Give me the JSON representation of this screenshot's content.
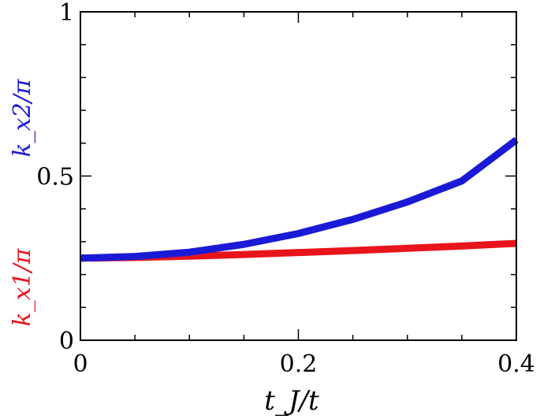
{
  "chart_data": {
    "type": "line",
    "xlabel": "t_J/t",
    "ylabel_parts": [
      {
        "text": "k_x1/π",
        "color": "#e8141c"
      },
      {
        "text": "k_x2/π",
        "color": "#1a1ad6"
      }
    ],
    "xlim": [
      0,
      0.4
    ],
    "ylim": [
      0,
      1
    ],
    "x_ticks": [
      0,
      0.2,
      0.4
    ],
    "x_tick_labels": [
      "0",
      "0.2",
      "0.4"
    ],
    "y_ticks": [
      0,
      0.5,
      1
    ],
    "y_tick_labels": [
      "0",
      "0.5",
      "1"
    ],
    "x_minor_step": 0.05,
    "y_minor_step": 0.1,
    "grid": false,
    "series": [
      {
        "name": "k_x1/π",
        "color": "#e8141c",
        "x": [
          0,
          0.05,
          0.1,
          0.15,
          0.2,
          0.25,
          0.3,
          0.35,
          0.4
        ],
        "y": [
          0.25,
          0.252,
          0.256,
          0.261,
          0.267,
          0.273,
          0.28,
          0.287,
          0.295
        ]
      },
      {
        "name": "k_x2/π",
        "color": "#1a1ad6",
        "x": [
          0,
          0.05,
          0.1,
          0.15,
          0.2,
          0.25,
          0.3,
          0.35,
          0.4
        ],
        "y": [
          0.25,
          0.255,
          0.268,
          0.292,
          0.325,
          0.368,
          0.421,
          0.485,
          0.61
        ]
      }
    ]
  }
}
